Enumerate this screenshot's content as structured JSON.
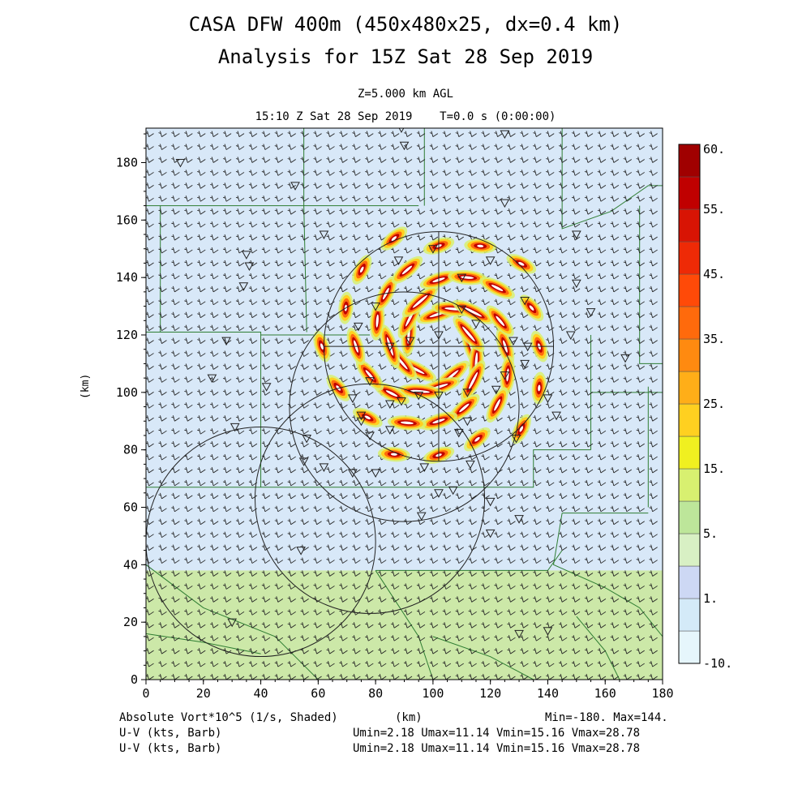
{
  "header": {
    "title_line1": "CASA DFW 400m (450x480x25, dx=0.4 km)",
    "title_line2": "Analysis for 15Z Sat 28 Sep 2019",
    "level": "Z=5.000 km AGL",
    "time": "15:10 Z Sat 28 Sep 2019    T=0.0 s (0:00:00)"
  },
  "footer": {
    "field_label": "Absolute Vort*10^5 (1/s, Shaded)",
    "x_unit": "(km)",
    "minmax": "Min=-180. Max=144.",
    "barb1_label": "U-V (kts, Barb)",
    "barb1_stats": "Umin=2.18 Umax=11.14 Vmin=15.16 Vmax=28.78",
    "barb2_label": "U-V (kts, Barb)",
    "barb2_stats": "Umin=2.18 Umax=11.14 Vmin=15.16 Vmax=28.78"
  },
  "chart_data": {
    "type": "heatmap",
    "title": "CASA DFW 400m (450x480x25, dx=0.4 km)",
    "xlabel": "(km)",
    "ylabel": "(km)",
    "xlim": [
      0,
      180
    ],
    "ylim": [
      0,
      192
    ],
    "x_ticks": [
      0,
      20,
      40,
      60,
      80,
      100,
      120,
      140,
      160,
      180
    ],
    "y_ticks": [
      0,
      20,
      40,
      60,
      80,
      100,
      120,
      140,
      160,
      180
    ],
    "x_tick_labels": [
      "0",
      "20",
      "40",
      "60",
      "80",
      "100",
      "120",
      "140",
      "160",
      "180"
    ],
    "y_tick_labels": [
      "0",
      "20",
      "40",
      "60",
      "80",
      "100",
      "120",
      "140",
      "160",
      "180"
    ],
    "background": {
      "upper_color": "#d8e8f8",
      "lower_color": "#cce8a8",
      "boundary_y": 38
    },
    "colorbar": {
      "levels": [
        "-10.",
        "",
        "1.",
        "",
        "5.",
        "",
        "15.",
        "",
        "25.",
        "",
        "35.",
        "",
        "45.",
        "",
        "55.",
        "60."
      ],
      "colors": [
        "#e6f6fc",
        "#d4eaf8",
        "#cdd8f4",
        "#d8f0c4",
        "#bde69a",
        "#d8f070",
        "#f0f020",
        "#ffd020",
        "#ffae18",
        "#ff8a10",
        "#ff6a0c",
        "#ff4a08",
        "#ee2a06",
        "#d81404",
        "#c00000",
        "#a00000"
      ]
    },
    "vortex_center": [
      102,
      116
    ],
    "radar_rings": [
      {
        "cx": 102,
        "cy": 116,
        "r": 40
      },
      {
        "cx": 90,
        "cy": 95,
        "r": 40
      },
      {
        "cx": 78,
        "cy": 63,
        "r": 40
      },
      {
        "cx": 40,
        "cy": 48,
        "r": 40
      }
    ],
    "wind_field": {
      "u_range": [
        2.18,
        11.14
      ],
      "v_range": [
        15.16,
        28.78
      ],
      "units": "kts"
    }
  }
}
